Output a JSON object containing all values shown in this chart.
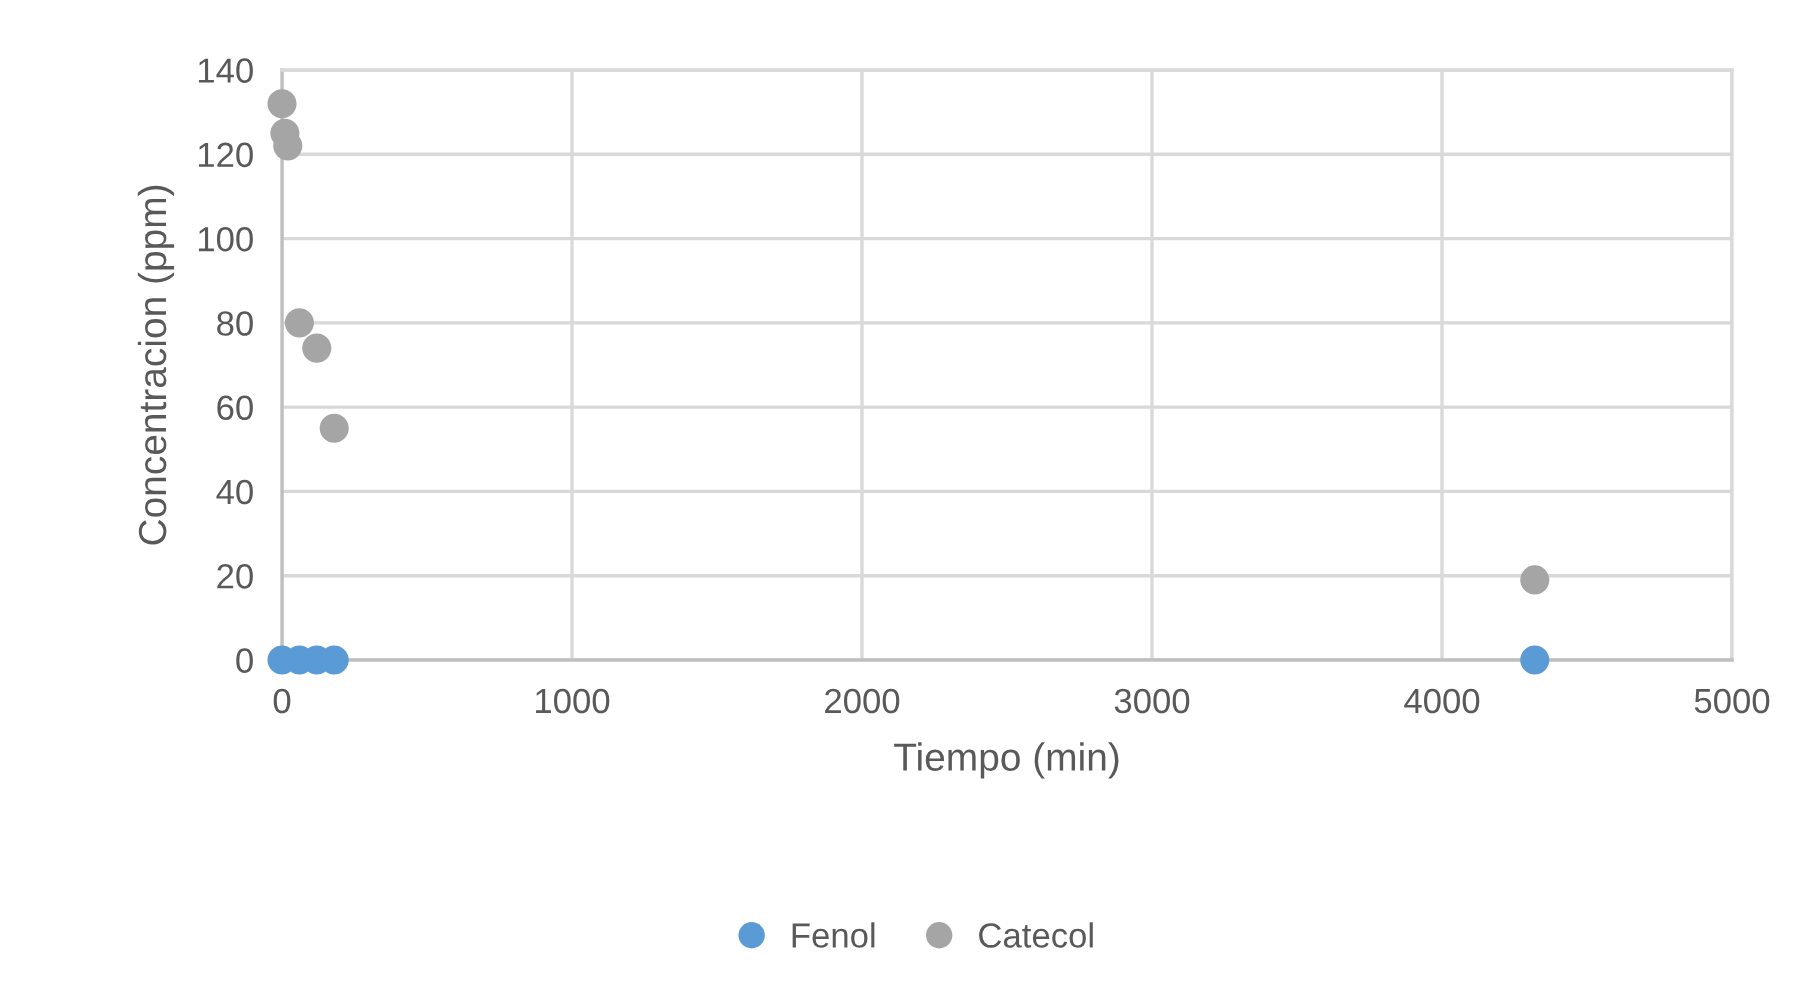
{
  "chart_data": {
    "type": "scatter",
    "xlabel": "Tiempo (min)",
    "ylabel": "Concentracion (ppm)",
    "series": [
      {
        "name": "Fenol",
        "color": "#5b9bd5",
        "x": [
          0,
          60,
          120,
          180,
          4320
        ],
        "values": [
          0,
          0,
          0,
          0,
          0
        ]
      },
      {
        "name": "Catecol",
        "color": "#a5a5a5",
        "x": [
          0,
          10,
          20,
          60,
          120,
          180,
          4320
        ],
        "values": [
          132,
          125,
          122,
          80,
          74,
          55,
          19
        ]
      }
    ],
    "xlim": [
      0,
      5000
    ],
    "xticks": [
      0,
      1000,
      2000,
      3000,
      4000,
      5000
    ],
    "ylim": [
      0,
      140
    ],
    "yticks": [
      0,
      20,
      40,
      60,
      80,
      100,
      120,
      140
    ],
    "grid": true,
    "legend": "bottom",
    "marker": "circle"
  }
}
